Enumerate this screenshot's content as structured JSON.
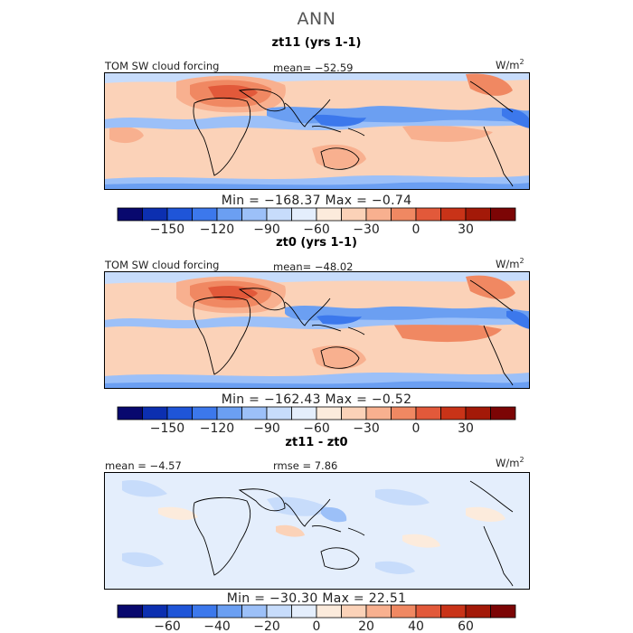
{
  "title": "ANN",
  "colors": {
    "scale": [
      "#08086e",
      "#0c2fb0",
      "#1f55d8",
      "#3c78ec",
      "#6b9ff2",
      "#9cc0f8",
      "#c7dcfb",
      "#e4eefc",
      "#fcebdc",
      "#fbd2b8",
      "#f8b08f",
      "#f08862",
      "#e2593a",
      "#c93318",
      "#a31908",
      "#7c0505"
    ]
  },
  "panels": [
    {
      "title": "zt11 (yrs 1-1)",
      "left_label": "TOM SW cloud forcing",
      "center_label": "mean= −52.59",
      "units": "W/m",
      "units_sup": "2",
      "minmax": "Min = −168.37  Max =  −0.74",
      "colorbar_ticks": [
        "−150",
        "−120",
        "−90",
        "−60",
        "−30",
        "0",
        "30"
      ]
    },
    {
      "title": "zt0 (yrs 1-1)",
      "left_label": "TOM SW cloud forcing",
      "center_label": "mean= −48.02",
      "units": "W/m",
      "units_sup": "2",
      "minmax": "Min = −162.43  Max =  −0.52",
      "colorbar_ticks": [
        "−150",
        "−120",
        "−90",
        "−60",
        "−30",
        "0",
        "30"
      ]
    },
    {
      "title": "zt11 - zt0",
      "left_label": "mean =   −4.57",
      "center_label": "rmse =    7.86",
      "units": "W/m",
      "units_sup": "2",
      "minmax": "Min = −30.30  Max =  22.51",
      "colorbar_ticks": [
        "−60",
        "−40",
        "−20",
        "0",
        "20",
        "40",
        "60"
      ]
    }
  ],
  "chart_data": [
    {
      "type": "heatmap",
      "title": "zt11 (yrs 1-1)",
      "variable": "TOM SW cloud forcing",
      "units": "W/m2",
      "mean": -52.59,
      "min": -168.37,
      "max": -0.74,
      "colorbar_ticks": [
        -150,
        -120,
        -90,
        -60,
        -30,
        0,
        30
      ]
    },
    {
      "type": "heatmap",
      "title": "zt0 (yrs 1-1)",
      "variable": "TOM SW cloud forcing",
      "units": "W/m2",
      "mean": -48.02,
      "min": -162.43,
      "max": -0.52,
      "colorbar_ticks": [
        -150,
        -120,
        -90,
        -60,
        -30,
        0,
        30
      ]
    },
    {
      "type": "heatmap",
      "title": "zt11 - zt0",
      "units": "W/m2",
      "mean": -4.57,
      "rmse": 7.86,
      "min": -30.3,
      "max": 22.51,
      "colorbar_ticks": [
        -60,
        -40,
        -20,
        0,
        20,
        40,
        60
      ]
    }
  ]
}
